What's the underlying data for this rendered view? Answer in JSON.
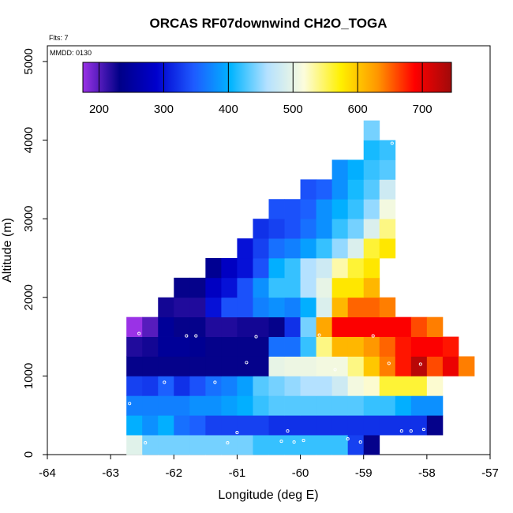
{
  "chart_data": {
    "type": "heatmap",
    "title": "ORCAS RF07downwind CH2O_TOGA",
    "xlabel": "Longitude (deg E)",
    "ylabel": "Altitude (m)",
    "flights_label": "Flts: 7",
    "date_label": "MMDD: 0130",
    "xlim": [
      -64,
      -57
    ],
    "ylim": [
      0,
      5200
    ],
    "x_ticks": [
      -64,
      -63,
      -62,
      -61,
      -60,
      -59,
      -58,
      -57
    ],
    "y_ticks": [
      0,
      1000,
      2000,
      3000,
      4000,
      5000
    ],
    "colorbar": {
      "range": [
        175,
        745
      ],
      "ticks": [
        200,
        300,
        400,
        500,
        600,
        700
      ],
      "stops": [
        "#9a32e6",
        "#000088",
        "#0000cd",
        "#1e5aff",
        "#00b4ff",
        "#b4e1ff",
        "#fcfcdc",
        "#fff000",
        "#ff9600",
        "#ff0000",
        "#a00a0a"
      ]
    },
    "cell_size": {
      "lon": 0.25,
      "alt": 250
    },
    "rows": [
      {
        "alt0": 0,
        "lon0": -62.75,
        "values": [
          495,
          440,
          440,
          440,
          440,
          440,
          440,
          440,
          420,
          420,
          420,
          420,
          420,
          420,
          330,
          230
        ]
      },
      {
        "alt0": 250,
        "lon0": -62.75,
        "values": [
          400,
          380,
          400,
          360,
          350,
          330,
          330,
          330,
          330,
          320,
          320,
          320,
          320,
          320,
          320,
          320,
          320,
          320,
          320,
          230
        ]
      },
      {
        "alt0": 500,
        "lon0": -62.75,
        "values": [
          370,
          370,
          370,
          370,
          380,
          380,
          390,
          400,
          420,
          430,
          430,
          430,
          430,
          430,
          430,
          420,
          420,
          400,
          380,
          380
        ]
      },
      {
        "alt0": 750,
        "lon0": -62.75,
        "values": [
          330,
          325,
          350,
          320,
          340,
          360,
          370,
          390,
          430,
          440,
          450,
          460,
          460,
          480,
          510,
          520,
          560,
          560,
          560,
          520
        ]
      },
      {
        "alt0": 1000,
        "lon0": -62.75,
        "values": [
          230,
          230,
          230,
          230,
          230,
          230,
          230,
          230,
          230,
          500,
          505,
          505,
          510,
          510,
          540,
          600,
          640,
          680,
          730,
          660,
          700,
          640
        ]
      },
      {
        "alt0": 1250,
        "lon0": -62.75,
        "values": [
          220,
          225,
          245,
          245,
          240,
          230,
          230,
          230,
          230,
          360,
          360,
          420,
          540,
          610,
          610,
          630,
          650,
          680,
          690,
          690,
          680
        ]
      },
      {
        "alt0": 1500,
        "lon0": -62.75,
        "values": [
          175,
          200,
          245,
          230,
          230,
          220,
          220,
          225,
          225,
          230,
          320,
          440,
          620,
          690,
          690,
          690,
          690,
          690,
          660,
          640
        ]
      },
      {
        "alt0": 1750,
        "lon0": -62.25,
        "values": [
          225,
          220,
          220,
          300,
          340,
          340,
          370,
          380,
          370,
          400,
          490,
          610,
          650,
          650,
          640
        ]
      },
      {
        "alt0": 2000,
        "lon0": -62.0,
        "values": [
          230,
          230,
          280,
          300,
          340,
          380,
          420,
          420,
          460,
          500,
          580,
          580,
          610
        ]
      },
      {
        "alt0": 2250,
        "lon0": -61.5,
        "values": [
          240,
          280,
          300,
          340,
          400,
          420,
          460,
          480,
          530,
          560,
          580
        ]
      },
      {
        "alt0": 2500,
        "lon0": -61.0,
        "values": [
          300,
          330,
          360,
          370,
          390,
          420,
          450,
          490,
          560,
          580
        ]
      },
      {
        "alt0": 2750,
        "lon0": -60.75,
        "values": [
          320,
          330,
          340,
          360,
          380,
          420,
          440,
          490,
          540
        ]
      },
      {
        "alt0": 3000,
        "lon0": -60.5,
        "values": [
          340,
          340,
          350,
          380,
          400,
          420,
          450,
          510
        ]
      },
      {
        "alt0": 3250,
        "lon0": -60.0,
        "values": [
          340,
          350,
          380,
          410,
          430,
          480
        ]
      },
      {
        "alt0": 3500,
        "lon0": -59.5,
        "values": [
          380,
          400,
          420,
          430
        ]
      },
      {
        "alt0": 3750,
        "lon0": -59.0,
        "values": [
          410,
          420
        ]
      },
      {
        "alt0": 4000,
        "lon0": -59.0,
        "values": [
          440
        ]
      }
    ],
    "points": [
      [
        -62.7,
        650
      ],
      [
        -62.45,
        150
      ],
      [
        -62.55,
        1540
      ],
      [
        -62.15,
        920
      ],
      [
        -61.8,
        1510
      ],
      [
        -61.65,
        1510
      ],
      [
        -61.35,
        920
      ],
      [
        -61.15,
        150
      ],
      [
        -61.0,
        280
      ],
      [
        -60.85,
        1170
      ],
      [
        -60.7,
        1500
      ],
      [
        -60.3,
        170
      ],
      [
        -60.2,
        300
      ],
      [
        -60.1,
        160
      ],
      [
        -59.95,
        180
      ],
      [
        -59.7,
        1520
      ],
      [
        -59.45,
        1080
      ],
      [
        -59.25,
        200
      ],
      [
        -59.05,
        160
      ],
      [
        -58.85,
        1510
      ],
      [
        -58.6,
        1160
      ],
      [
        -58.55,
        3960
      ],
      [
        -58.4,
        300
      ],
      [
        -58.25,
        300
      ],
      [
        -58.3,
        2080
      ],
      [
        -58.1,
        1150
      ],
      [
        -58.05,
        320
      ]
    ]
  }
}
